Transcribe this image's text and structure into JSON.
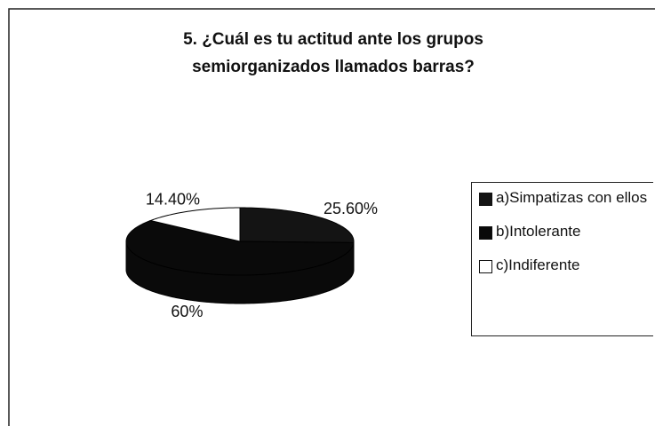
{
  "chart_data": {
    "type": "pie",
    "title": [
      "5.  ¿Cuál es tu actitud ante los grupos",
      "semiorganizados llamados barras?"
    ],
    "categories": [
      "a)Simpatizas con ellos",
      "b)Intolerante",
      "c)Indiferente"
    ],
    "values": [
      25.6,
      60,
      14.4
    ],
    "value_labels": [
      "25.60%",
      "60%",
      "14.40%"
    ],
    "colors": [
      "#141414",
      "#0a0a0a",
      "#ffffff"
    ],
    "legend": "right"
  }
}
